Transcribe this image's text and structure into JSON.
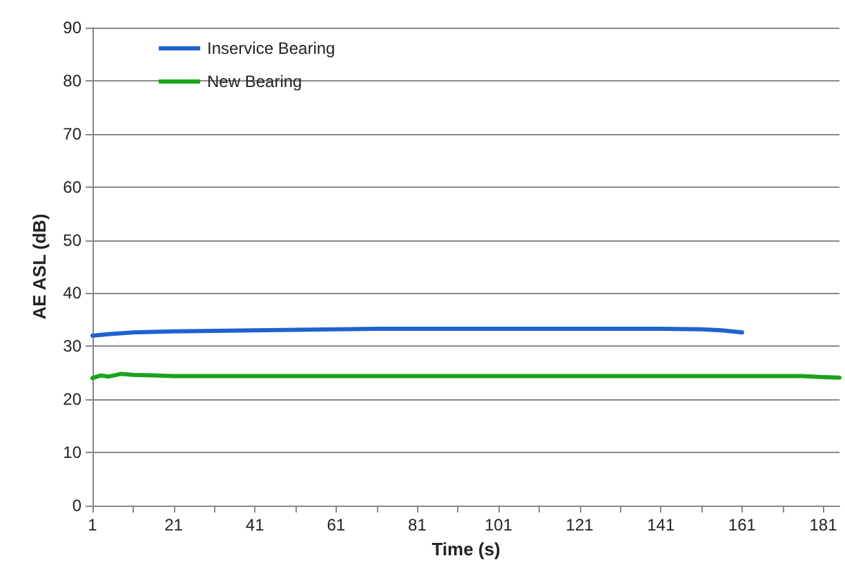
{
  "chart_data": {
    "type": "line",
    "xlabel": "Time (s)",
    "ylabel": "AE ASL (dB)",
    "series": [
      {
        "name": "Inservice Bearing",
        "color": "#1f63d0",
        "x": [
          1,
          5,
          11,
          21,
          31,
          41,
          51,
          61,
          71,
          81,
          91,
          101,
          111,
          121,
          131,
          141,
          151,
          156,
          161
        ],
        "values": [
          32.0,
          32.3,
          32.6,
          32.8,
          32.9,
          33.0,
          33.1,
          33.2,
          33.3,
          33.3,
          33.3,
          33.3,
          33.3,
          33.3,
          33.3,
          33.3,
          33.2,
          33.0,
          32.6
        ]
      },
      {
        "name": "New Bearing",
        "color": "#1aa31a",
        "x": [
          1,
          3,
          5,
          8,
          11,
          16,
          21,
          41,
          61,
          81,
          101,
          121,
          141,
          161,
          176,
          181,
          185
        ],
        "values": [
          24.0,
          24.5,
          24.3,
          24.8,
          24.6,
          24.5,
          24.4,
          24.4,
          24.4,
          24.4,
          24.4,
          24.4,
          24.4,
          24.4,
          24.4,
          24.2,
          24.1
        ]
      }
    ],
    "xlim": [
      1,
      185
    ],
    "xticks": [
      1,
      {
        "value": 11,
        "label": null
      },
      21,
      {
        "value": 31,
        "label": null
      },
      41,
      {
        "value": 51,
        "label": null
      },
      61,
      {
        "value": 71,
        "label": null
      },
      81,
      {
        "value": 91,
        "label": null
      },
      101,
      {
        "value": 111,
        "label": null
      },
      121,
      {
        "value": 131,
        "label": null
      },
      141,
      {
        "value": 151,
        "label": null
      },
      161,
      {
        "value": 171,
        "label": null
      },
      181
    ],
    "ylim": [
      0,
      90
    ],
    "yticks": [
      0,
      10,
      20,
      30,
      40,
      50,
      60,
      70,
      80,
      90
    ],
    "grid": "y",
    "legend": "top left",
    "marker": "none",
    "line_style": "solid"
  }
}
